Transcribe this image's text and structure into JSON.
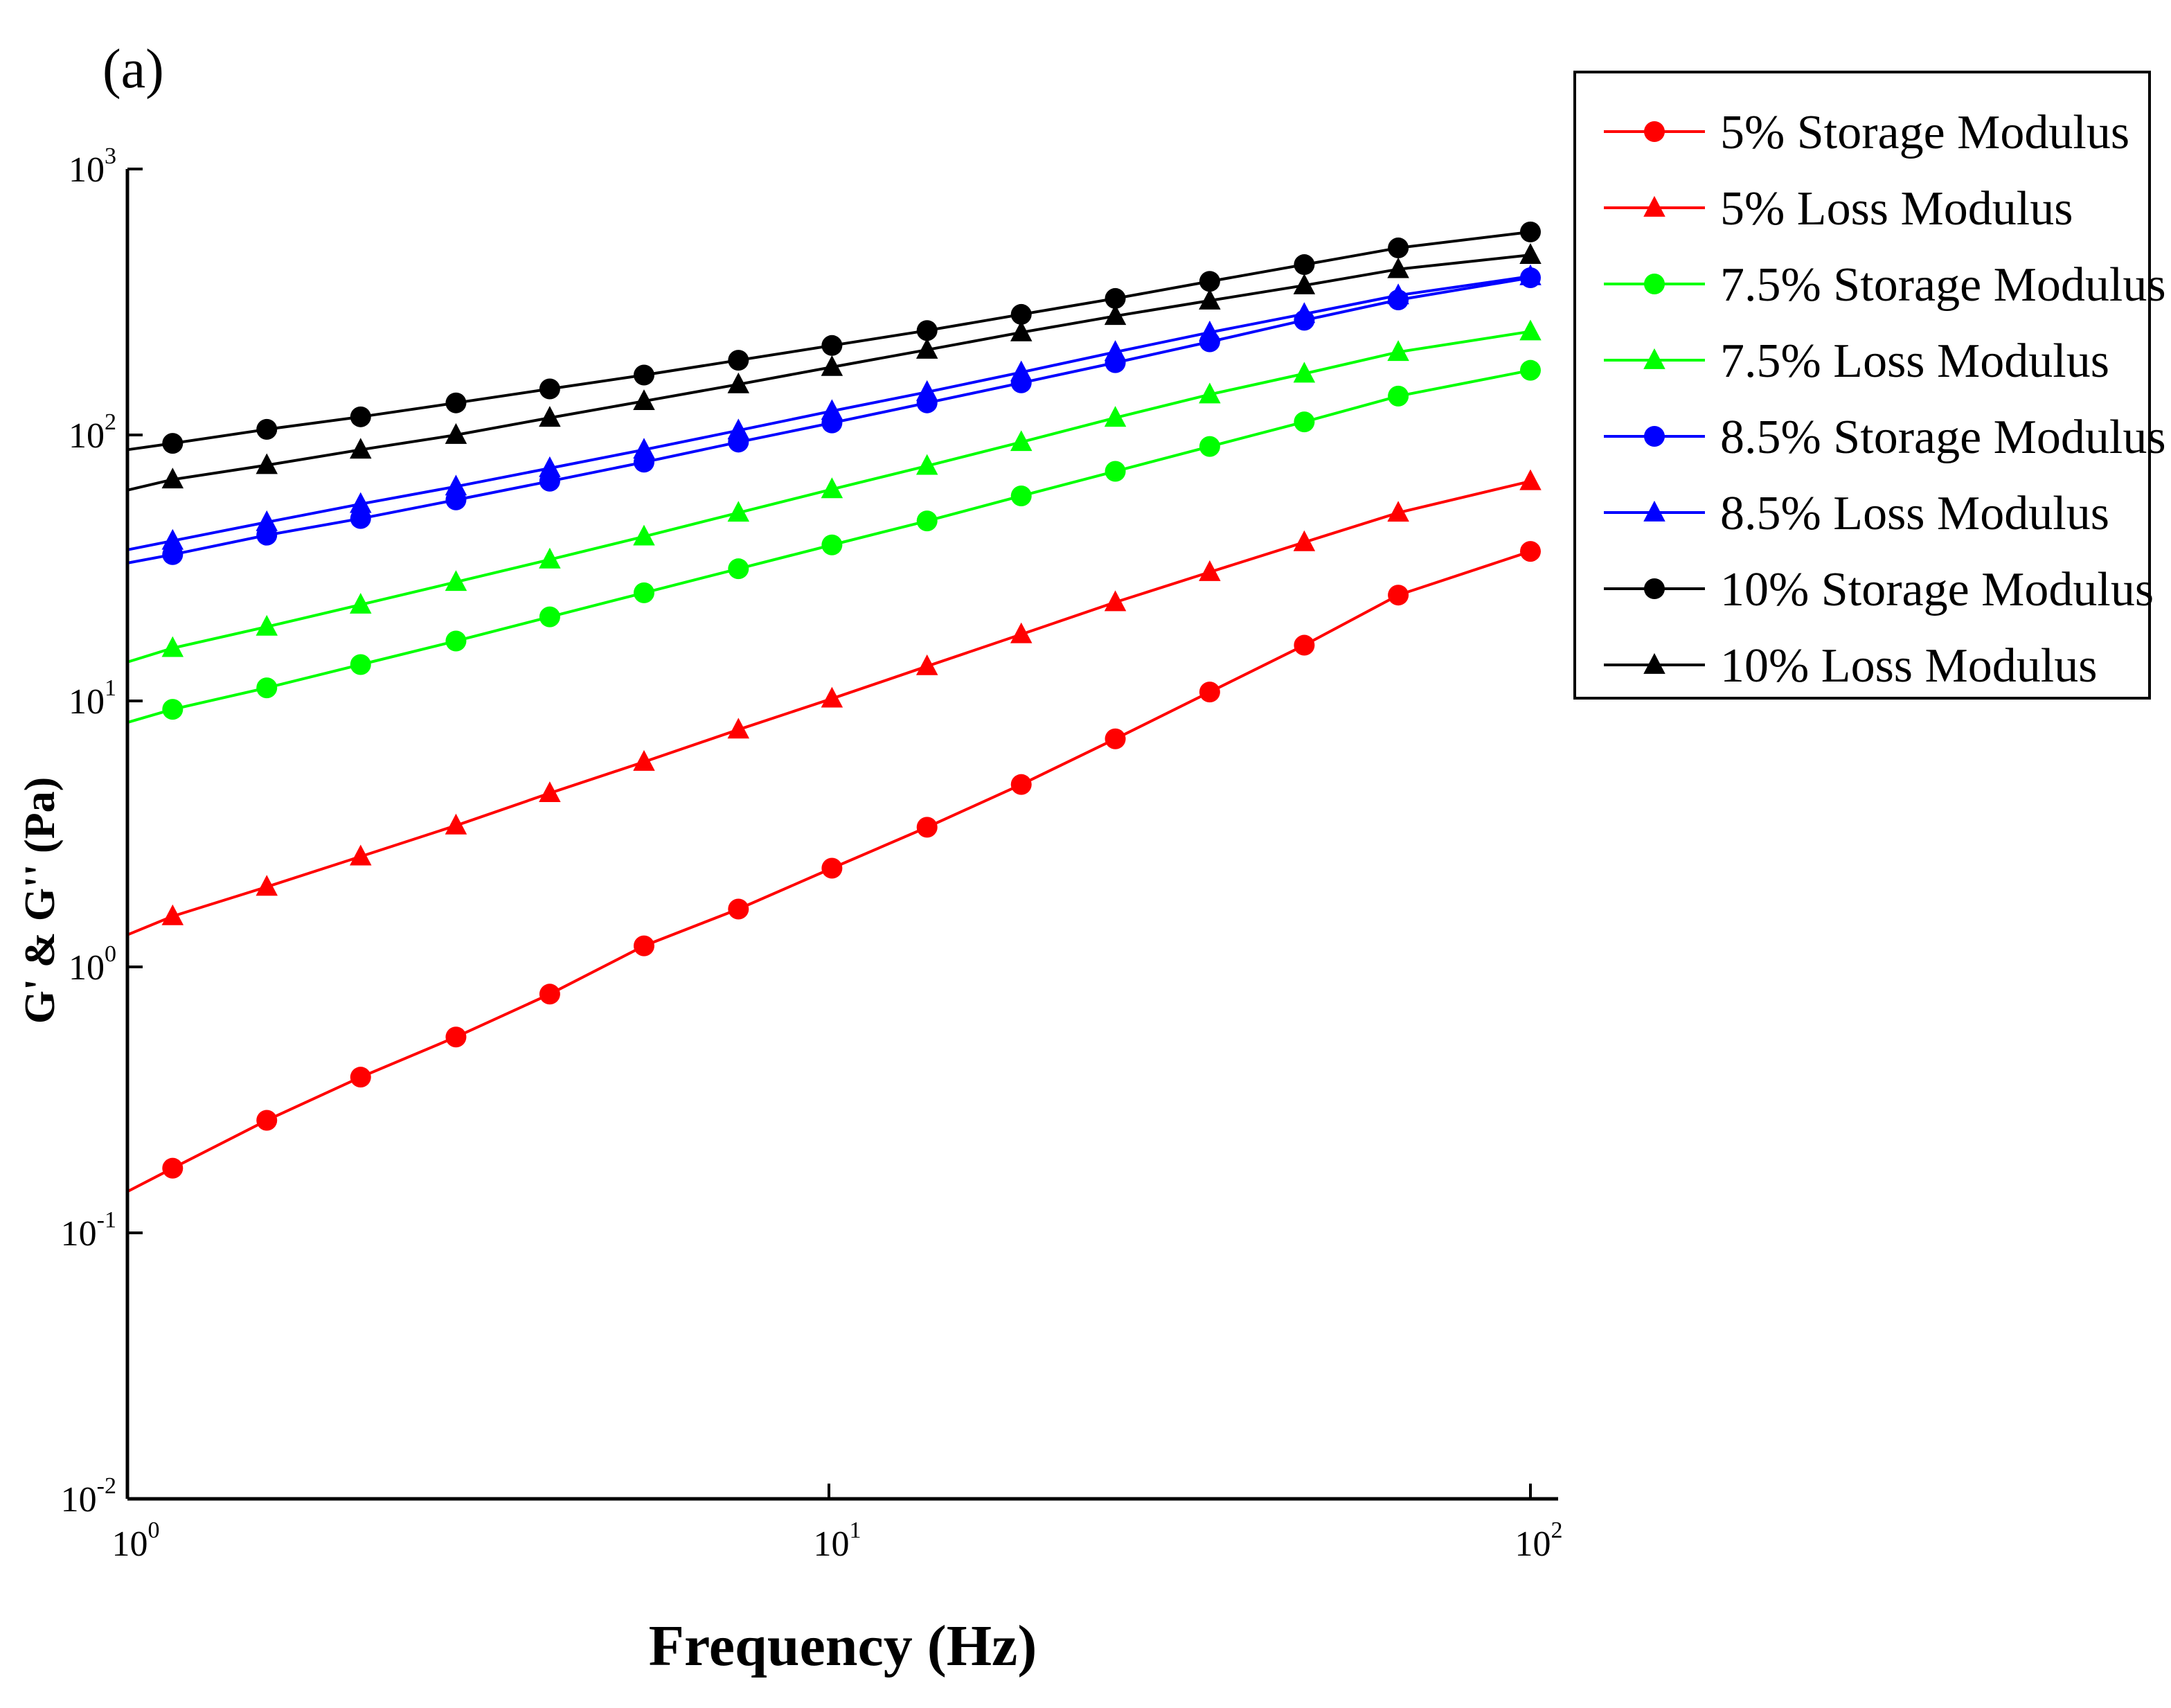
{
  "panel_label": "(a)",
  "chart_data": {
    "type": "line",
    "xscale": "log",
    "yscale": "log",
    "xlabel": "Frequency (Hz)",
    "ylabel": "G' & G'' (Pa)",
    "xlim": [
      1,
      100
    ],
    "ylim": [
      0.01,
      1000
    ],
    "x_ticks": [
      {
        "value": 1,
        "base": "10",
        "exp": "0"
      },
      {
        "value": 10,
        "base": "10",
        "exp": "1"
      },
      {
        "value": 100,
        "base": "10",
        "exp": "2"
      }
    ],
    "y_ticks": [
      {
        "value": 0.01,
        "base": "10",
        "exp": "-2"
      },
      {
        "value": 0.1,
        "base": "10",
        "exp": "-1"
      },
      {
        "value": 1,
        "base": "10",
        "exp": "0"
      },
      {
        "value": 10,
        "base": "10",
        "exp": "1"
      },
      {
        "value": 100,
        "base": "10",
        "exp": "2"
      },
      {
        "value": 1000,
        "base": "10",
        "exp": "3"
      }
    ],
    "grid": false,
    "legend_position": "top-right-outside",
    "x": [
      1.16,
      1.58,
      2.15,
      2.94,
      4.0,
      5.45,
      7.43,
      10.1,
      13.8,
      18.8,
      25.6,
      34.9,
      47.6,
      64.8,
      100
    ],
    "series": [
      {
        "name": "5% Storage Modulus",
        "color": "#ff0000",
        "marker": "circle",
        "line_start": [
          1,
          0.143
        ],
        "values": [
          0.175,
          0.265,
          0.385,
          0.545,
          0.79,
          1.2,
          1.65,
          2.35,
          3.35,
          4.85,
          7.2,
          10.8,
          16.2,
          25.0,
          36.5
        ]
      },
      {
        "name": "5% Loss Modulus",
        "color": "#ff0000",
        "marker": "triangle",
        "line_start": [
          1,
          1.32
        ],
        "values": [
          1.55,
          2.0,
          2.6,
          3.4,
          4.5,
          5.9,
          7.8,
          10.2,
          13.5,
          17.8,
          23.5,
          30.5,
          39.5,
          51.0,
          67.0
        ]
      },
      {
        "name": "7.5% Storage Modulus",
        "color": "#00ff00",
        "marker": "circle",
        "line_start": [
          1,
          8.3
        ],
        "values": [
          9.3,
          11.2,
          13.7,
          16.8,
          20.7,
          25.5,
          31.4,
          38.6,
          47.5,
          59.0,
          73.0,
          90.5,
          112,
          140,
          175
        ]
      },
      {
        "name": "7.5% Loss Modulus",
        "color": "#00ff00",
        "marker": "triangle",
        "line_start": [
          1,
          14.0
        ],
        "values": [
          15.8,
          19.0,
          23.0,
          28.0,
          34.0,
          41.5,
          51.0,
          62.5,
          76.5,
          94.0,
          116,
          142,
          170,
          205,
          245
        ]
      },
      {
        "name": "8.5% Storage Modulus",
        "color": "#0000ff",
        "marker": "circle",
        "line_start": [
          1,
          33.0
        ],
        "values": [
          35.5,
          42.0,
          48.5,
          57.0,
          67.0,
          79.0,
          94.0,
          111,
          132,
          157,
          187,
          224,
          270,
          322,
          390
        ]
      },
      {
        "name": "8.5% Loss Modulus",
        "color": "#0000ff",
        "marker": "triangle",
        "line_start": [
          1,
          37.0
        ],
        "values": [
          40.0,
          47.0,
          55.0,
          64.0,
          75.0,
          88.0,
          104,
          123,
          145,
          172,
          205,
          243,
          285,
          335,
          395
        ]
      },
      {
        "name": "10% Storage Modulus",
        "color": "#000000",
        "marker": "circle",
        "line_start": [
          1,
          88.0
        ],
        "values": [
          93.0,
          105,
          117,
          132,
          149,
          168,
          191,
          217,
          247,
          284,
          326,
          378,
          437,
          505,
          580
        ]
      },
      {
        "name": "10% Loss Modulus",
        "color": "#000000",
        "marker": "triangle",
        "line_start": [
          1,
          62.0
        ],
        "values": [
          68.0,
          77.0,
          88.0,
          100,
          116,
          134,
          155,
          180,
          209,
          243,
          280,
          320,
          365,
          420,
          475
        ]
      }
    ]
  }
}
